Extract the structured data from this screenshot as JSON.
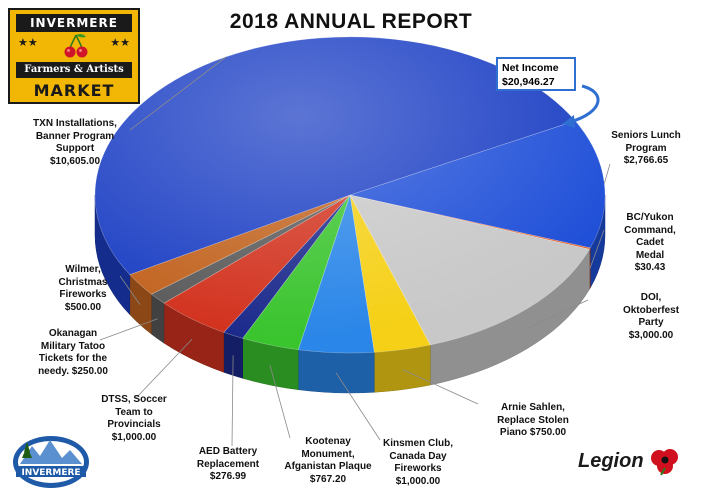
{
  "title": "2018  ANNUAL REPORT",
  "logo": {
    "line1": "INVERMERE",
    "stars_left": "★★",
    "stars_right": "★★",
    "line2": "Farmers & Artists",
    "line3": "MARKET"
  },
  "net_income": {
    "label": "Net Income",
    "value": "$20,946.27"
  },
  "bottom_left_logo": {
    "text": "INVERMERE"
  },
  "bottom_right_logo": {
    "text": "Legion"
  },
  "chart_data": {
    "type": "pie",
    "title": "2018  ANNUAL REPORT",
    "series": [
      {
        "label_lines": [
          "Seniors Lunch",
          "Program",
          "$2,766.65"
        ],
        "value": 2766.65,
        "color": "#1f4fd8"
      },
      {
        "label_lines": [
          "BC/Yukon",
          "Command,",
          "Cadet",
          "Medal",
          "$30.43"
        ],
        "value": 30.43,
        "color": "#e0551e"
      },
      {
        "label_lines": [
          "DOI,",
          "Oktoberfest",
          "Party",
          "$3,000.00"
        ],
        "value": 3000.0,
        "color": "#c8c8c8"
      },
      {
        "label_lines": [
          "Arnie Sahlen,",
          "Replace Stolen",
          "Piano  $750.00"
        ],
        "value": 750.0,
        "color": "#f5d016"
      },
      {
        "label_lines": [
          "Kinsmen Club,",
          "Canada Day",
          "Fireworks",
          "$1,000.00"
        ],
        "value": 1000.0,
        "color": "#2a86e8"
      },
      {
        "label_lines": [
          "Kootenay",
          "Monument,",
          "Afganistan Plaque",
          "$767.20"
        ],
        "value": 767.2,
        "color": "#3ac42e"
      },
      {
        "label_lines": [
          "AED Battery",
          "Replacement",
          "$276.99"
        ],
        "value": 276.99,
        "color": "#1c2a8c"
      },
      {
        "label_lines": [
          "DTSS, Soccer",
          "Team to",
          "Provincials",
          "$1,000.00"
        ],
        "value": 1000.0,
        "color": "#d2321e"
      },
      {
        "label_lines": [
          "Okanagan",
          "Military Tatoo",
          "Tickets for the",
          "needy.  $250.00"
        ],
        "value": 250.0,
        "color": "#5a5a5a"
      },
      {
        "label_lines": [
          "Wilmer,",
          "Christmas",
          "Fireworks",
          "$500.00"
        ],
        "value": 500.0,
        "color": "#c1621e"
      },
      {
        "label_lines": [
          "TXN Installations,",
          "Banner Program",
          "Support",
          "$10,605.00"
        ],
        "value": 10605.0,
        "color": "#1c3fc4"
      }
    ]
  }
}
